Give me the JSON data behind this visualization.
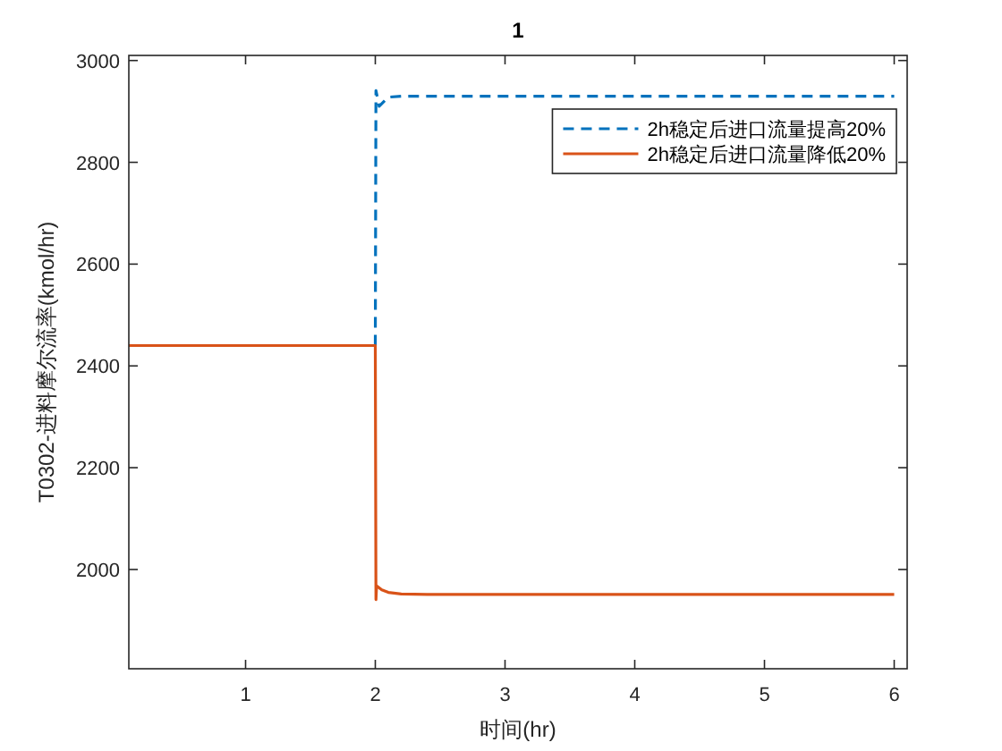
{
  "chart_data": {
    "type": "line",
    "title": "1",
    "xlabel": "时间(hr)",
    "ylabel": "T0302-进料摩尔流率(kmol/hr)",
    "xlim": [
      0.1,
      6.1
    ],
    "xticks": [
      1,
      2,
      3,
      4,
      5,
      6
    ],
    "ylim": [
      1805,
      3010
    ],
    "yticks": [
      2000,
      2200,
      2400,
      2600,
      2800,
      3000
    ],
    "grid": false,
    "legend": "top right",
    "series": [
      {
        "name": "2h稳定后进口流量提高20%",
        "color": "#0072bd",
        "line_style": "dashed",
        "x": [
          2.0,
          2.005,
          2.03,
          2.1,
          2.2,
          6.0
        ],
        "values": [
          2440,
          2941,
          2910,
          2928,
          2930,
          2930
        ]
      },
      {
        "name": "2h稳定后进口流量降低20%",
        "color": "#d95319",
        "line_style": "solid",
        "x": [
          0.1,
          2.0,
          2.005,
          2.01,
          2.05,
          2.1,
          2.2,
          2.4,
          6.0
        ],
        "values": [
          2440,
          2440,
          1941,
          1968,
          1960,
          1955,
          1952,
          1951,
          1951
        ]
      }
    ]
  }
}
